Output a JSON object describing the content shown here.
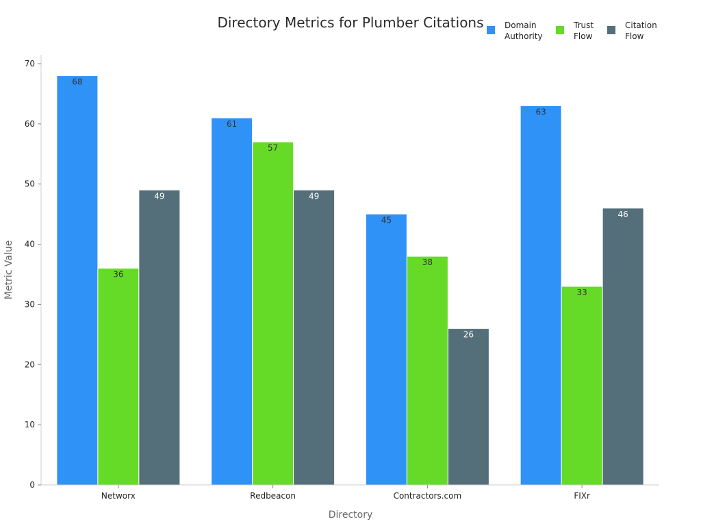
{
  "chart_data": {
    "type": "bar",
    "title": "Directory Metrics for Plumber Citations",
    "xlabel": "Directory",
    "ylabel": "Metric Value",
    "categories": [
      "Networx",
      "Redbeacon",
      "Contractors.com",
      "FIXr"
    ],
    "series": [
      {
        "name": "Domain Authority",
        "values": [
          68,
          61,
          45,
          63
        ],
        "color": "#2f92f7",
        "label_color": "#333333"
      },
      {
        "name": "Trust Flow",
        "values": [
          36,
          57,
          38,
          33
        ],
        "color": "#66db27",
        "label_color": "#333333"
      },
      {
        "name": "Citation Flow",
        "values": [
          49,
          49,
          26,
          46
        ],
        "color": "#546e7a",
        "label_color": "#ffffff"
      }
    ],
    "ylim": [
      0,
      70
    ],
    "yticks": [
      0,
      10,
      20,
      30,
      40,
      50,
      60,
      70
    ],
    "grid": false,
    "legend_position": "top-right"
  }
}
